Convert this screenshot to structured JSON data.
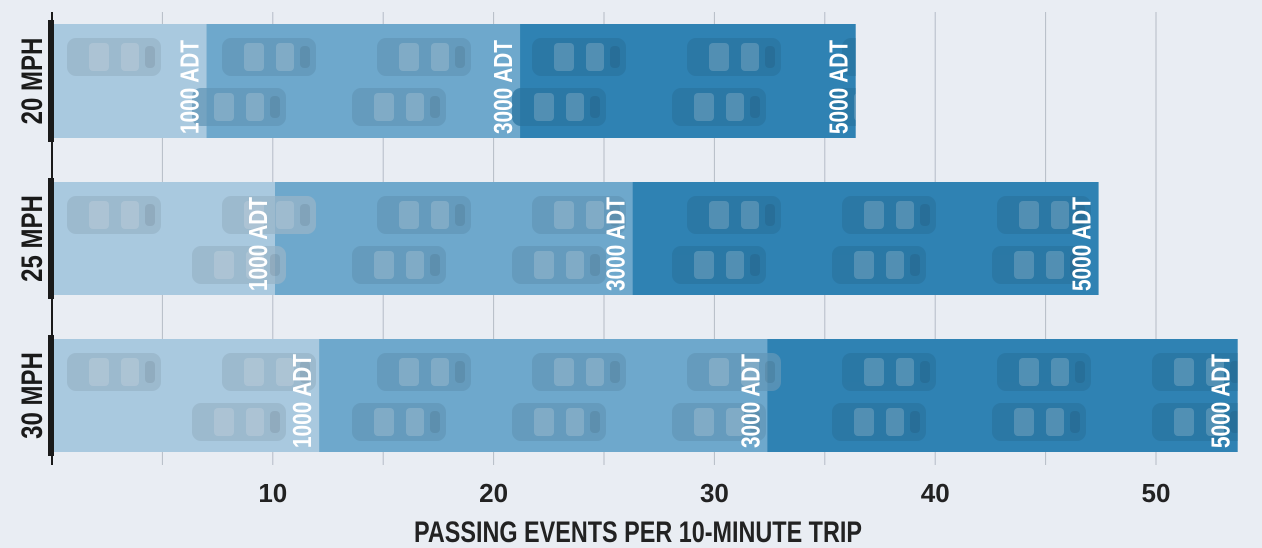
{
  "chart_data": {
    "type": "bar",
    "title": "",
    "xlabel": "PASSING EVENTS PER 10-MINUTE TRIP",
    "ylabel": "",
    "xlim": [
      0,
      54
    ],
    "x_ticks": [
      10,
      20,
      30,
      40,
      50
    ],
    "x_tick_labels": [
      "10",
      "20",
      "30",
      "40",
      "50"
    ],
    "grid": "vertical, every 5 units",
    "categories": [
      "20 MPH",
      "25 MPH",
      "30 MPH"
    ],
    "series": [
      {
        "name": "1000 ADT",
        "color": "#a9c9df",
        "values": [
          7.0,
          10.1,
          12.1
        ]
      },
      {
        "name": "3000 ADT",
        "color": "#6ea8cc",
        "values": [
          21.2,
          26.3,
          32.4
        ]
      },
      {
        "name": "5000 ADT",
        "color": "#2f82b3",
        "values": [
          36.4,
          47.4,
          53.7
        ]
      }
    ],
    "background_icon": "car-icon"
  }
}
